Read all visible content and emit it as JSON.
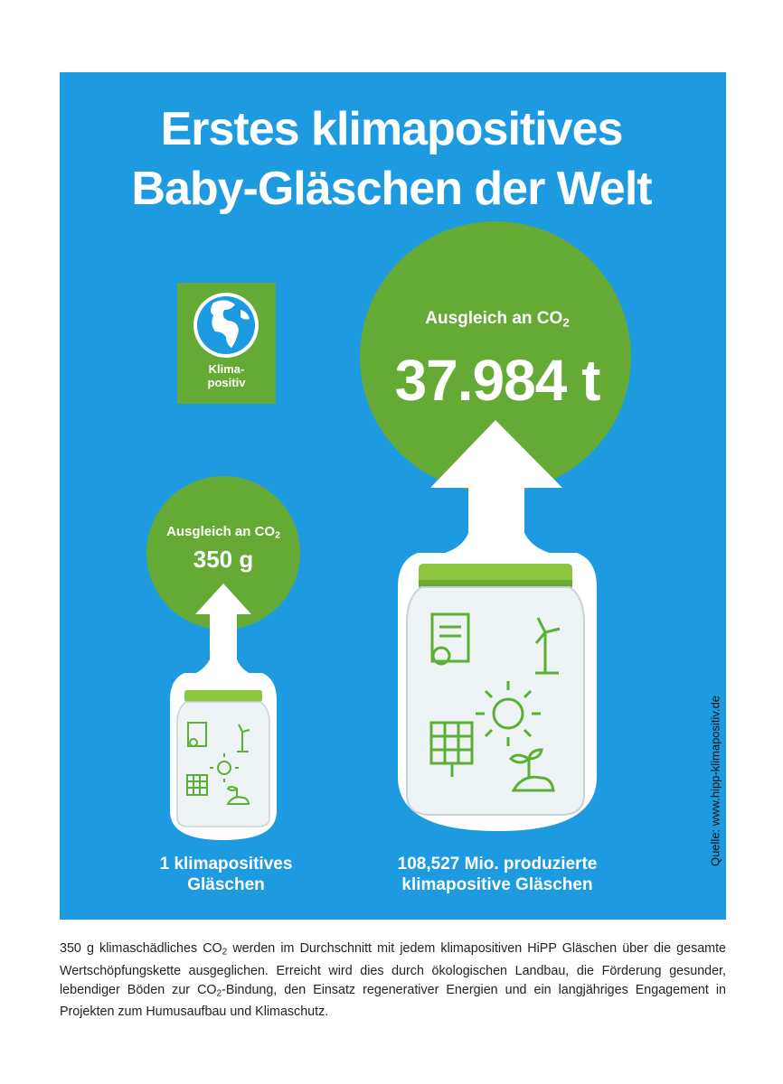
{
  "title": {
    "line1": "Erstes klimapositives",
    "line2": "Baby-Gläschen der Welt"
  },
  "badge": {
    "label": "Klima-\npositiv"
  },
  "big_circle": {
    "caption_prefix": "Ausgleich an CO",
    "caption_sub": "2",
    "value": "37.984 t"
  },
  "small_circle": {
    "caption_prefix": "Ausgleich an CO",
    "caption_sub": "2",
    "value": "350 g"
  },
  "captions": {
    "small": "1 klimapositives Gläschen",
    "big": "108,527 Mio. produzierte klimapositive Gläschen"
  },
  "source": "Quelle: www.hipp-klimapositiv.de",
  "paragraph": {
    "part1": "350 g klimaschädliches CO",
    "sub1": "2",
    "part2": " werden im Durchschnitt mit jedem klimapositiven HiPP Gläschen über die gesamte Wertschöpfungskette ausgeglichen. Erreicht wird dies durch ökologischen Landbau, die Förderung gesunder, lebendiger Böden zur CO",
    "sub2": "2",
    "part3": "-Bindung, den Einsatz regenerativer Energien und ein langjähriges Engagement in Projekten zum Humusaufbau und Klimaschutz."
  },
  "colors": {
    "panel_blue": "#1e9be0",
    "green": "#66aa36",
    "white": "#ffffff"
  }
}
